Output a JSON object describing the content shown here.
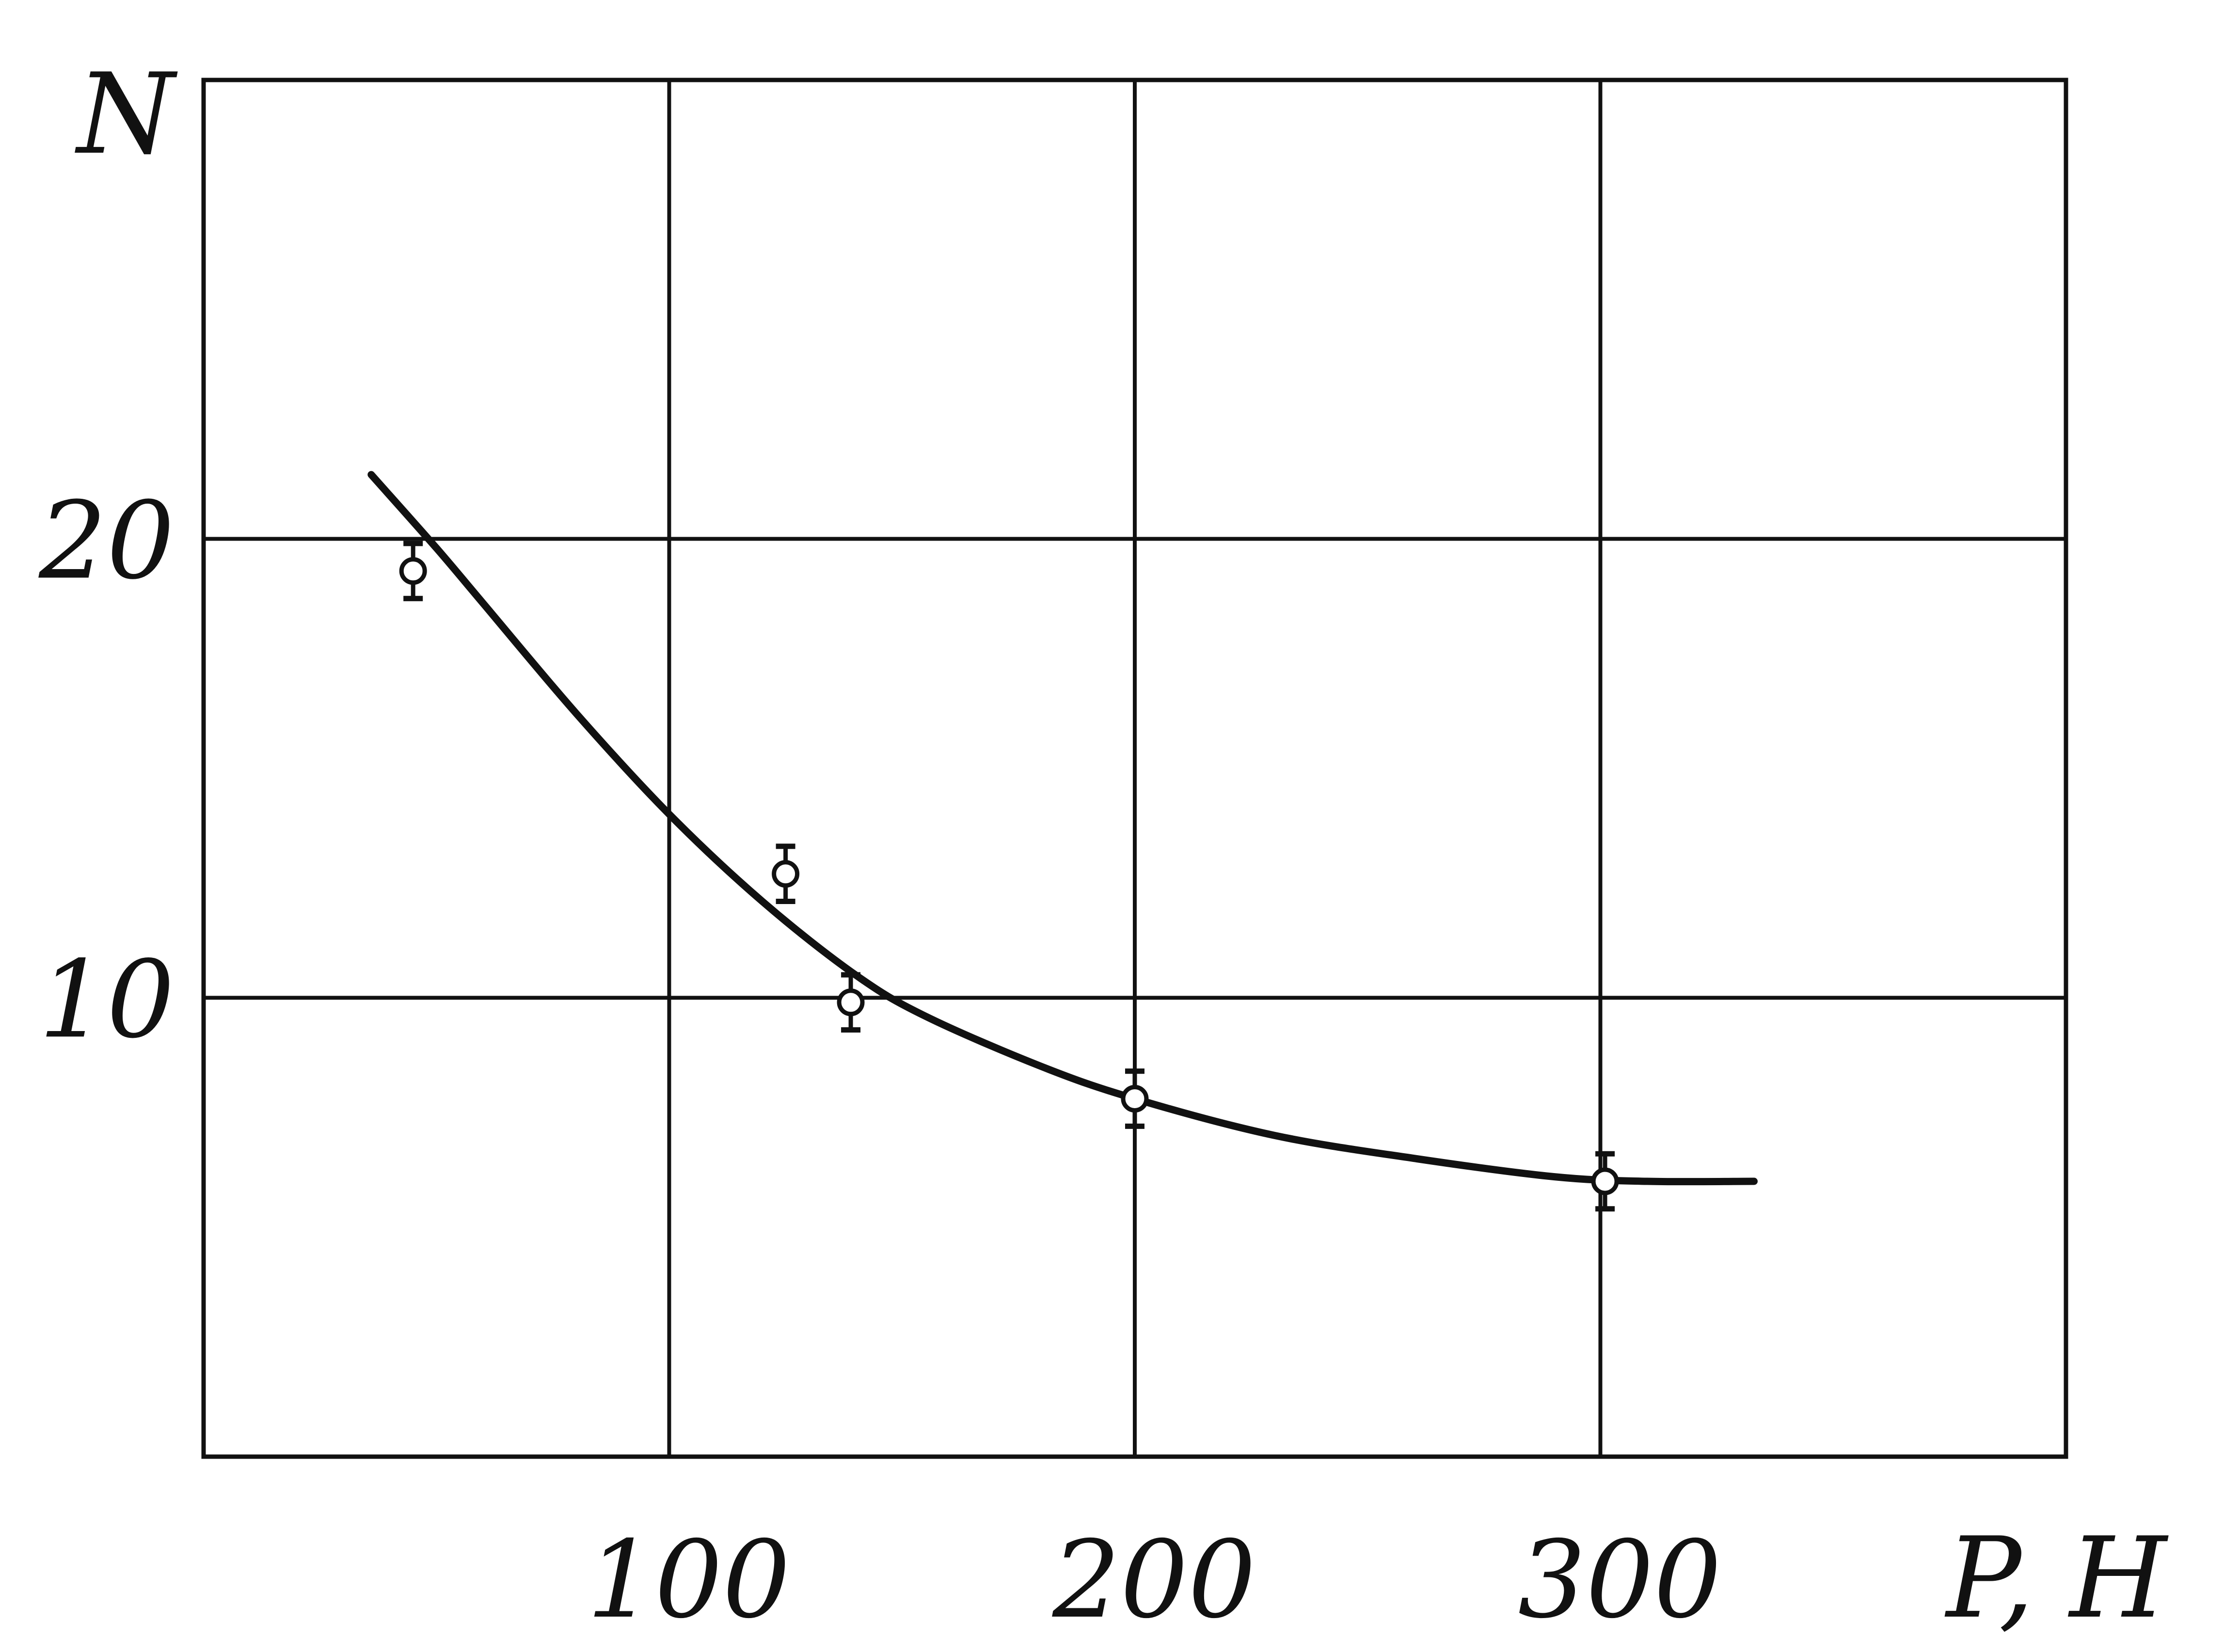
{
  "chart_data": {
    "type": "scatter",
    "title": "",
    "xlabel": "P, H",
    "ylabel": "N",
    "xlim": [
      0,
      400
    ],
    "ylim": [
      0,
      30
    ],
    "xticks": [
      100,
      200,
      300
    ],
    "yticks": [
      10,
      20
    ],
    "x_tick_labels": [
      "100",
      "200",
      "300"
    ],
    "y_tick_labels": [
      "10",
      "20"
    ],
    "grid": true,
    "colors": {
      "ink": "#111111",
      "background": "#ffffff"
    },
    "points": [
      {
        "x": 45,
        "y": 19.3,
        "err": 0.6
      },
      {
        "x": 125,
        "y": 12.7,
        "err": 0.6
      },
      {
        "x": 139,
        "y": 9.9,
        "err": 0.6
      },
      {
        "x": 200,
        "y": 7.8,
        "err": 0.6
      },
      {
        "x": 301,
        "y": 6.0,
        "err": 0.6
      }
    ],
    "fit_curve": {
      "x": [
        36,
        50,
        60,
        80,
        100,
        120,
        140,
        155,
        180,
        200,
        230,
        260,
        290,
        310,
        333
      ],
      "y": [
        21.4,
        19.8,
        18.6,
        16.2,
        14.0,
        12.1,
        10.5,
        9.6,
        8.5,
        7.8,
        7.0,
        6.5,
        6.1,
        6.0,
        6.0
      ]
    }
  }
}
